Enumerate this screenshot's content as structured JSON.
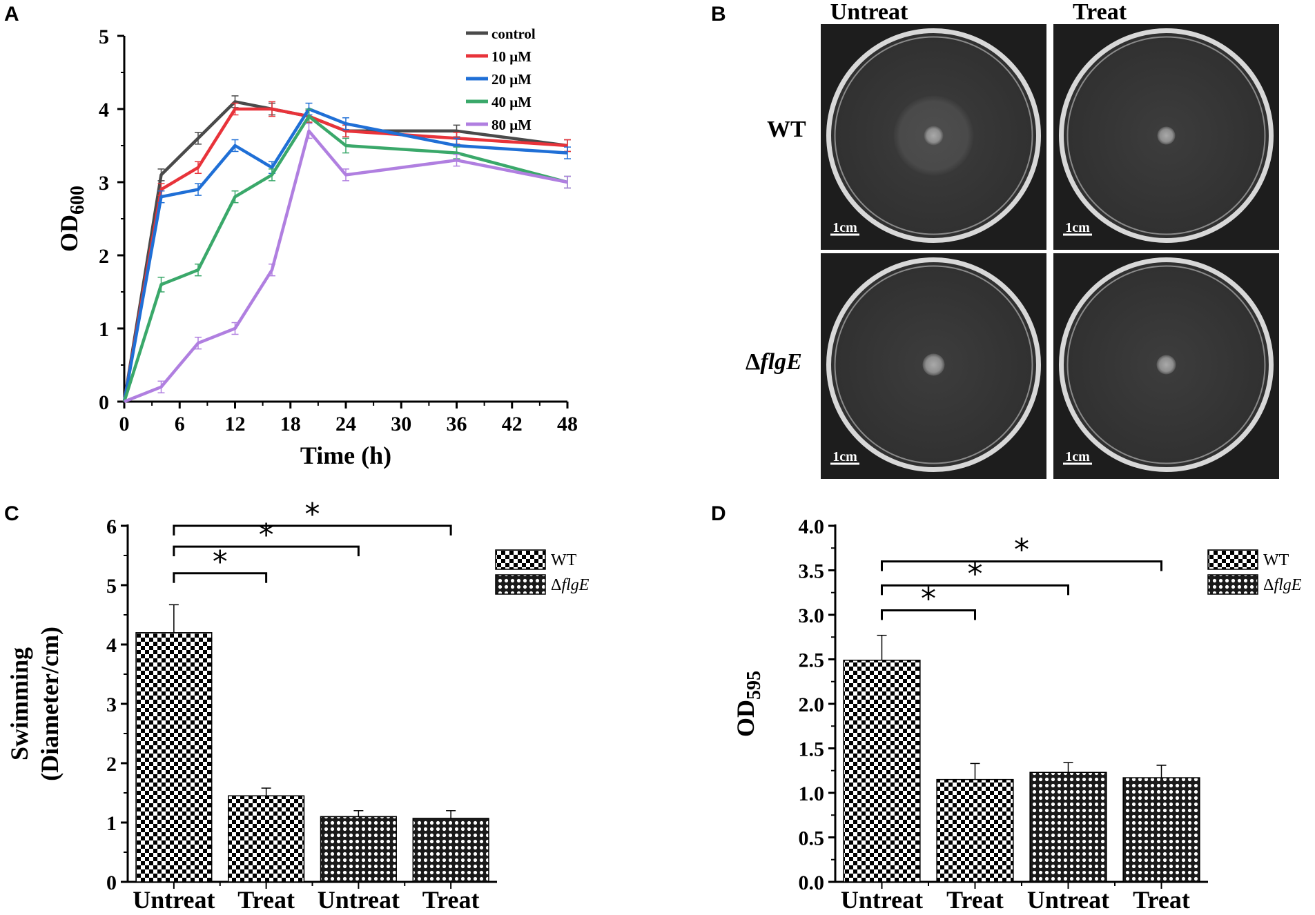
{
  "chart_data": [
    {
      "panel": "A",
      "type": "line",
      "title": "",
      "xlabel": "Time (h)",
      "ylabel_main": "OD",
      "ylabel_sub": "600",
      "xlim": [
        0,
        48
      ],
      "ylim": [
        0,
        5
      ],
      "xticks": [
        0,
        6,
        12,
        18,
        24,
        30,
        36,
        42,
        48
      ],
      "yticks": [
        0,
        1,
        2,
        3,
        4,
        5
      ],
      "x": [
        0,
        4,
        8,
        12,
        16,
        20,
        24,
        36,
        48
      ],
      "legend_position": "top-right",
      "series": [
        {
          "name": "control",
          "color": "#4a4a4a",
          "values": [
            0,
            3.1,
            3.6,
            4.1,
            4.0,
            3.9,
            3.7,
            3.7,
            3.5
          ],
          "err": [
            0,
            0.08,
            0.08,
            0.08,
            0.08,
            0.08,
            0.08,
            0.08,
            0.08
          ]
        },
        {
          "name": "10 μM",
          "color": "#e8333a",
          "values": [
            0,
            2.9,
            3.2,
            4.0,
            4.0,
            3.9,
            3.7,
            3.6,
            3.5
          ],
          "err": [
            0,
            0.08,
            0.08,
            0.08,
            0.1,
            0.08,
            0.08,
            0.08,
            0.08
          ]
        },
        {
          "name": "20 μM",
          "color": "#1f6fd6",
          "values": [
            0,
            2.8,
            2.9,
            3.5,
            3.2,
            4.0,
            3.8,
            3.5,
            3.4
          ],
          "err": [
            0,
            0.08,
            0.08,
            0.08,
            0.08,
            0.08,
            0.08,
            0.1,
            0.08
          ]
        },
        {
          "name": "40 μM",
          "color": "#3aa86a",
          "values": [
            0,
            1.6,
            1.8,
            2.8,
            3.1,
            3.9,
            3.5,
            3.4,
            3.0
          ],
          "err": [
            0,
            0.1,
            0.08,
            0.08,
            0.08,
            0.1,
            0.1,
            0.08,
            0.08
          ]
        },
        {
          "name": "80 μM",
          "color": "#b07fe0",
          "values": [
            0,
            0.2,
            0.8,
            1.0,
            1.8,
            3.7,
            3.1,
            3.3,
            3.0
          ],
          "err": [
            0,
            0.08,
            0.08,
            0.08,
            0.08,
            0.1,
            0.08,
            0.08,
            0.08
          ]
        }
      ]
    },
    {
      "panel": "C",
      "type": "bar",
      "title": "",
      "ylabel_line1": "Swimming",
      "ylabel_line2": "(Diameter/cm)",
      "ylim": [
        0,
        6
      ],
      "yticks": [
        0,
        1,
        2,
        3,
        4,
        5,
        6
      ],
      "categories": [
        "Untreat",
        "Treat",
        "Untreat",
        "Treat"
      ],
      "groups": [
        "WT",
        "WT",
        "ΔflgE",
        "ΔflgE"
      ],
      "values": [
        4.2,
        1.45,
        1.1,
        1.07
      ],
      "err": [
        0.47,
        0.13,
        0.1,
        0.13
      ],
      "legend": [
        {
          "label": "WT",
          "pattern": "checker"
        },
        {
          "label": "ΔflgE",
          "pattern": "dots"
        }
      ],
      "legend_position": "top-right",
      "significance": [
        {
          "from": 0,
          "to": 1,
          "y": 5.2,
          "label": "*"
        },
        {
          "from": 0,
          "to": 2,
          "y": 5.65,
          "label": "*"
        },
        {
          "from": 0,
          "to": 3,
          "y": 6.0,
          "label": "*"
        }
      ]
    },
    {
      "panel": "D",
      "type": "bar",
      "title": "",
      "ylabel_main": "OD",
      "ylabel_sub": "595",
      "ylim": [
        0,
        4.0
      ],
      "yticks": [
        "0.0",
        "0.5",
        "1.0",
        "1.5",
        "2.0",
        "2.5",
        "3.0",
        "3.5",
        "4.0"
      ],
      "categories": [
        "Untreat",
        "Treat",
        "Untreat",
        "Treat"
      ],
      "groups": [
        "WT",
        "WT",
        "ΔflgE",
        "ΔflgE"
      ],
      "values": [
        2.49,
        1.15,
        1.23,
        1.17
      ],
      "err": [
        0.28,
        0.18,
        0.11,
        0.14
      ],
      "legend": [
        {
          "label": "WT",
          "pattern": "checker"
        },
        {
          "label": "ΔflgE",
          "pattern": "dots"
        }
      ],
      "legend_position": "top-right",
      "significance": [
        {
          "from": 0,
          "to": 1,
          "y": 3.05,
          "label": "*"
        },
        {
          "from": 0,
          "to": 2,
          "y": 3.33,
          "label": "*"
        },
        {
          "from": 0,
          "to": 3,
          "y": 3.6,
          "label": "*"
        }
      ]
    }
  ],
  "panel_labels": {
    "a": "A",
    "b": "B",
    "c": "C",
    "d": "D"
  },
  "photo_panel": {
    "col_headers": [
      "Untreat",
      "Treat"
    ],
    "row_wt": "WT",
    "row_mut_delta": "Δ",
    "row_mut_name": "flgE",
    "scale_bar": "1cm"
  },
  "legend_mut_delta": "Δ",
  "legend_mut_name": "flgE"
}
